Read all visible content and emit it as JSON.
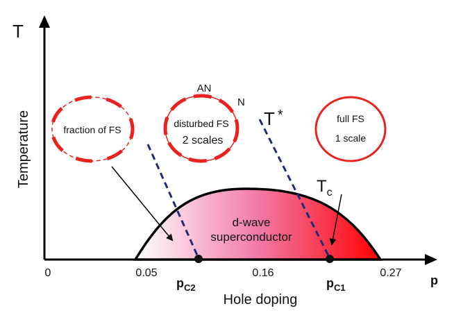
{
  "axes": {
    "y_symbol": "T",
    "y_label": "Temperature",
    "x_symbol": "p",
    "x_label": "Hole doping"
  },
  "ticks": {
    "t0": "0",
    "t1": "0.05",
    "t2": "0.16",
    "t3": "0.27"
  },
  "critical_points": {
    "pc2": {
      "main": "p",
      "sub": "C2"
    },
    "pc1": {
      "main": "p",
      "sub": "C1"
    }
  },
  "dome": {
    "label_line1": "d-wave",
    "label_line2": "superconductor",
    "tc_main": "T",
    "tc_sub": "c",
    "fill_start": "#ffffff",
    "fill_end": "#ff0000"
  },
  "tstar": {
    "main": "T",
    "sup": "*",
    "color": "#1f2a7a"
  },
  "fermi_surfaces": {
    "left": {
      "line1": "fraction of FS"
    },
    "middle": {
      "top_label": "AN",
      "side_label": "N",
      "line1": "disturbed FS",
      "line2": "2 scales"
    },
    "right": {
      "line1": "full FS",
      "line2": "1 scale"
    },
    "color": "#e8231f"
  }
}
